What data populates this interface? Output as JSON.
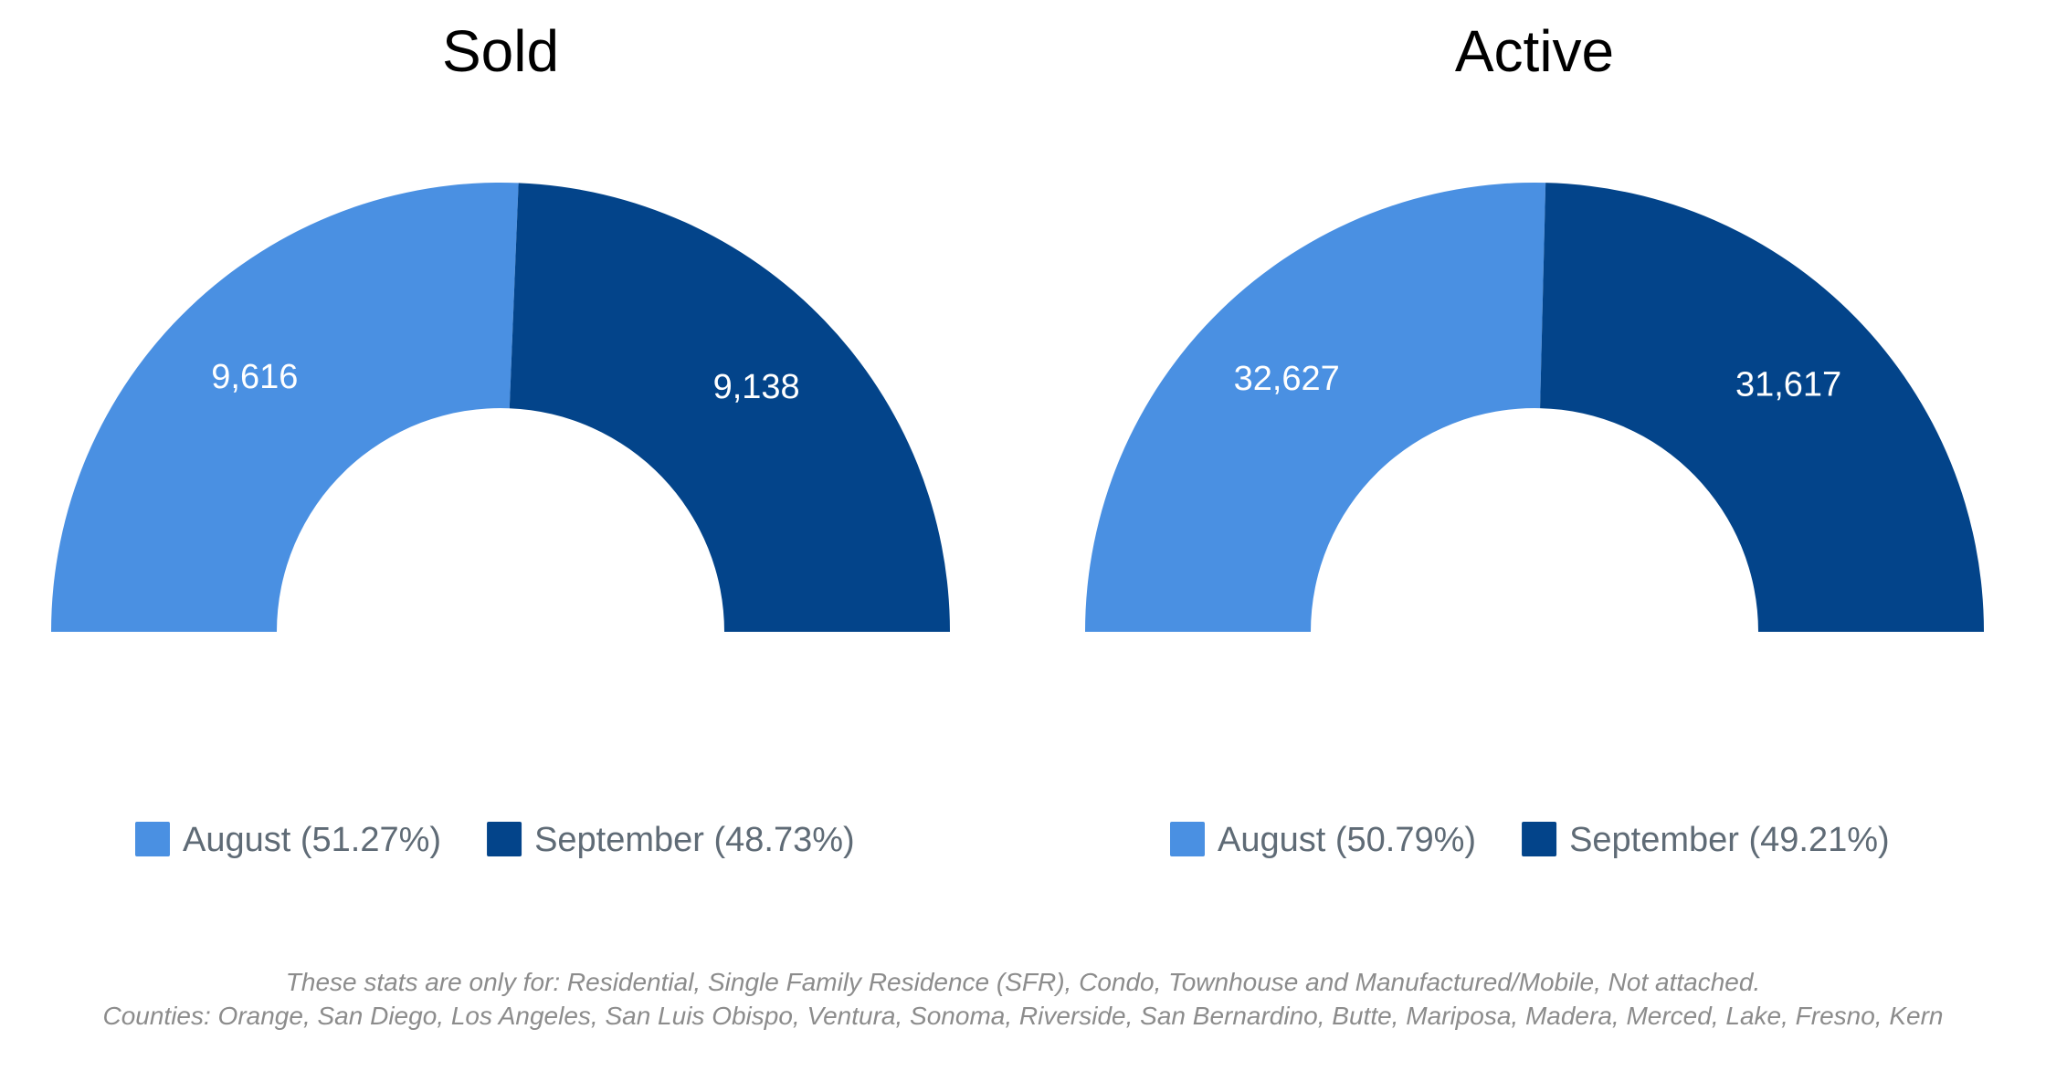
{
  "chart_data": [
    {
      "type": "pie",
      "style": "half-donut",
      "title": "Sold",
      "slices": [
        {
          "label": "August",
          "value": 9616,
          "value_label": "9,616",
          "legend": "August (51.27%)",
          "color": "#4a90e2"
        },
        {
          "label": "September",
          "value": 9138,
          "value_label": "9,138",
          "legend": "September (48.73%)",
          "color": "#03448a"
        }
      ],
      "legend_position": "bottom"
    },
    {
      "type": "pie",
      "style": "half-donut",
      "title": "Active",
      "slices": [
        {
          "label": "August",
          "value": 32627,
          "value_label": "32,627",
          "legend": "August (50.79%)",
          "color": "#4a90e2"
        },
        {
          "label": "September",
          "value": 31617,
          "value_label": "31,617",
          "legend": "September (49.21%)",
          "color": "#03448a"
        }
      ],
      "legend_position": "bottom"
    }
  ],
  "footnote": {
    "line1": "These stats are only for: Residential, Single Family Residence (SFR), Condo, Townhouse and Manufactured/Mobile, Not attached.",
    "line2": "Counties: Orange, San Diego, Los Angeles, San Luis Obispo, Ventura, Sonoma, Riverside, San Bernardino, Butte, Mariposa, Madera, Merced, Lake, Fresno, Kern"
  }
}
